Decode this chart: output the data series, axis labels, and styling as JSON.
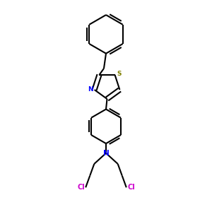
{
  "background_color": "#ffffff",
  "bond_color": "#000000",
  "N_color": "#0000ff",
  "S_color": "#808000",
  "Cl_color": "#cc00cc",
  "line_width": 1.5,
  "fig_width": 3.0,
  "fig_height": 3.0,
  "dpi": 100,
  "xlim": [
    0.2,
    0.8
  ],
  "ylim": [
    0.02,
    1.0
  ]
}
